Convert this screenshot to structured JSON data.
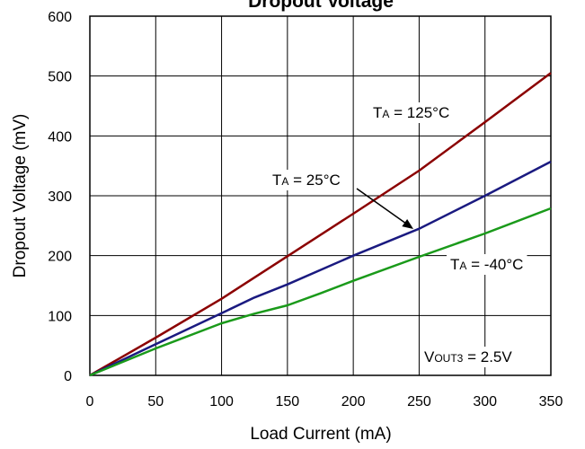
{
  "chart_data": {
    "type": "line",
    "title": "Dropout Voltage",
    "xlabel": "Load Current (mA)",
    "ylabel": "Dropout Voltage (mV)",
    "xlim": [
      0,
      350
    ],
    "ylim": [
      0,
      600
    ],
    "x_ticks": [
      0,
      50,
      100,
      150,
      200,
      250,
      300,
      350
    ],
    "y_ticks": [
      0,
      100,
      200,
      300,
      400,
      500,
      600
    ],
    "x_tick_labels": [
      "0",
      "50",
      "100",
      "150",
      "200",
      "250",
      "300",
      "350"
    ],
    "y_tick_labels": [
      "0",
      "100",
      "200",
      "300",
      "400",
      "500",
      "600"
    ],
    "grid": true,
    "series": [
      {
        "name": "TA = 125°C",
        "color": "#8B0000",
        "x": [
          0,
          50,
          100,
          150,
          200,
          250,
          300,
          350
        ],
        "y": [
          0,
          63,
          128,
          199,
          270,
          342,
          423,
          505
        ]
      },
      {
        "name": "TA = 25°C",
        "color": "#1A1A80",
        "x": [
          0,
          50,
          100,
          125,
          150,
          200,
          250,
          300,
          350
        ],
        "y": [
          0,
          52,
          104,
          130,
          152,
          200,
          245,
          300,
          357
        ]
      },
      {
        "name": "TA = -40°C",
        "color": "#1A9A1A",
        "x": [
          0,
          50,
          100,
          125,
          150,
          175,
          200,
          250,
          300,
          350
        ],
        "y": [
          0,
          45,
          87,
          103,
          117,
          137,
          158,
          198,
          237,
          279
        ]
      }
    ],
    "annotations": [
      {
        "main": "T",
        "sub": "A",
        "rest": " = 125°C"
      },
      {
        "main": "T",
        "sub": "A",
        "rest": " = 25°C"
      },
      {
        "main": "T",
        "sub": "A",
        "rest": " = -40°C"
      },
      {
        "main": "V",
        "sub": "OUT3",
        "rest": " =  2.5V"
      }
    ]
  }
}
